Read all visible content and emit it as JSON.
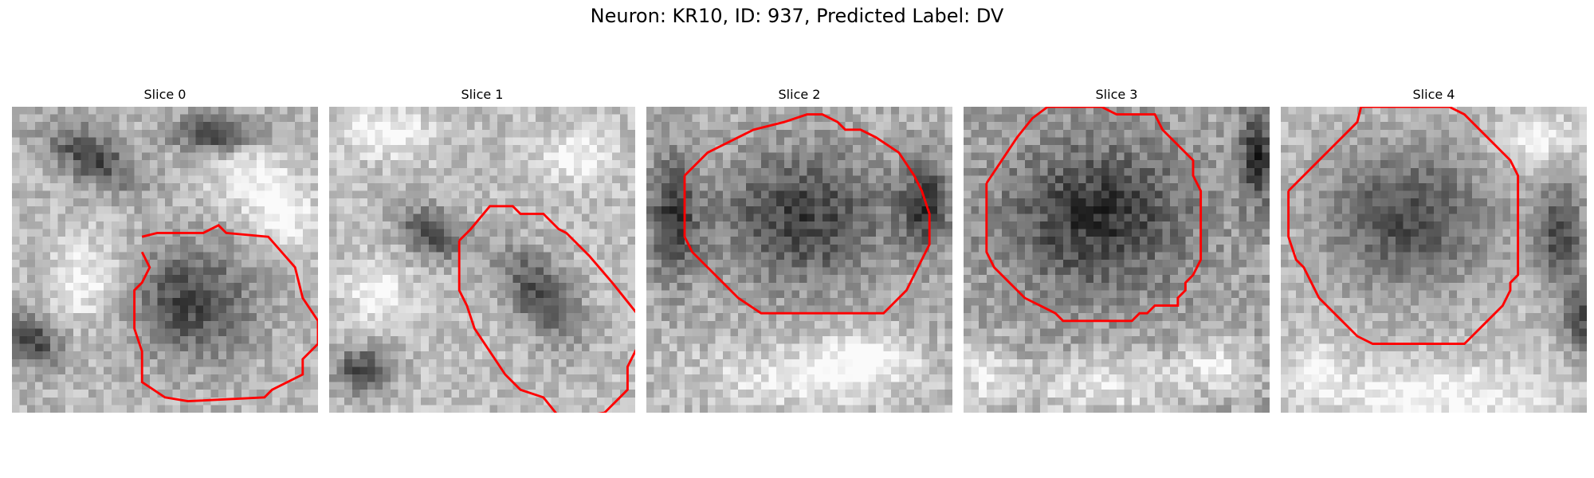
{
  "figure": {
    "title": "Neuron: KR10, ID: 937, Predicted Label: DV"
  },
  "colors": {
    "contour": "#ff0000",
    "background": "#ffffff"
  },
  "panels": [
    {
      "title": "Slice 0"
    },
    {
      "title": "Slice 1"
    },
    {
      "title": "Slice 2"
    },
    {
      "title": "Slice 3"
    },
    {
      "title": "Slice 4"
    }
  ]
}
